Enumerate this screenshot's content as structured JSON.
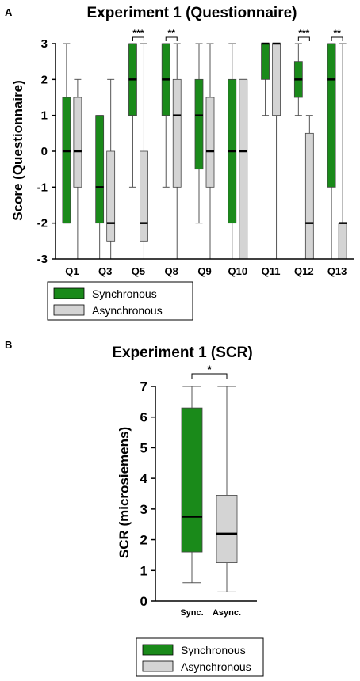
{
  "chart_data": [
    {
      "panel": "A",
      "type": "boxplot",
      "title": "Experiment 1 (Questionnaire)",
      "ylabel": "Score (Questionnaire)",
      "xlabel": "",
      "ylim": [
        -3,
        3
      ],
      "yticks": [
        "3",
        "2",
        "1",
        "0",
        "-1",
        "-2",
        "-3"
      ],
      "grid": false,
      "legend_position": "bottom-left",
      "categories": [
        "Q1",
        "Q3",
        "Q5",
        "Q8",
        "Q9",
        "Q10",
        "Q11",
        "Q12",
        "Q13"
      ],
      "significance": [
        "",
        "",
        "***",
        "**",
        "",
        "",
        "",
        "***",
        "**"
      ],
      "series": [
        {
          "name": "Synchronous",
          "color": "#1a8a1a",
          "boxes": [
            {
              "min": -2,
              "q1": -2,
              "median": 0,
              "q3": 1.5,
              "max": 3
            },
            {
              "min": -3,
              "q1": -2,
              "median": -1,
              "q3": 1,
              "max": 1
            },
            {
              "min": -1,
              "q1": 1,
              "median": 2,
              "q3": 3,
              "max": 3
            },
            {
              "min": -1,
              "q1": 1,
              "median": 2,
              "q3": 3,
              "max": 3
            },
            {
              "min": -2,
              "q1": -0.5,
              "median": 1,
              "q3": 2,
              "max": 3
            },
            {
              "min": -3,
              "q1": -2,
              "median": 0,
              "q3": 2,
              "max": 3
            },
            {
              "min": 1,
              "q1": 2,
              "median": 3,
              "q3": 3,
              "max": 3
            },
            {
              "min": 1,
              "q1": 1.5,
              "median": 2,
              "q3": 2.5,
              "max": 3
            },
            {
              "min": -3,
              "q1": -1,
              "median": 2,
              "q3": 3,
              "max": 3
            }
          ]
        },
        {
          "name": "Asynchronous",
          "color": "#d4d4d4",
          "boxes": [
            {
              "min": -3,
              "q1": -1,
              "median": 0,
              "q3": 1.5,
              "max": 2
            },
            {
              "min": -3,
              "q1": -2.5,
              "median": -2,
              "q3": 0,
              "max": 2
            },
            {
              "min": -3,
              "q1": -2.5,
              "median": -2,
              "q3": 0,
              "max": 3
            },
            {
              "min": -3,
              "q1": -1,
              "median": 1,
              "q3": 2,
              "max": 3
            },
            {
              "min": -3,
              "q1": -1,
              "median": 0,
              "q3": 1.5,
              "max": 3
            },
            {
              "min": -3,
              "q1": -3,
              "median": 0,
              "q3": 2,
              "max": 2
            },
            {
              "min": -3,
              "q1": 1,
              "median": 3,
              "q3": 3,
              "max": 3
            },
            {
              "min": -3,
              "q1": -3,
              "median": -2,
              "q3": 0.5,
              "max": 1
            },
            {
              "min": -3,
              "q1": -3,
              "median": -2,
              "q3": -2,
              "max": 3
            }
          ]
        }
      ]
    },
    {
      "panel": "B",
      "type": "boxplot",
      "title": "Experiment 1 (SCR)",
      "ylabel": "SCR (microsiemens)",
      "xlabel": "",
      "ylim": [
        0,
        7
      ],
      "yticks": [
        "7",
        "6",
        "5",
        "4",
        "3",
        "2",
        "1",
        "0"
      ],
      "grid": false,
      "legend_position": "bottom-center",
      "categories": [
        "Sync.",
        "Async."
      ],
      "significance": "*",
      "series": [
        {
          "name": "Synchronous",
          "color": "#1a8a1a",
          "box": {
            "min": 0.6,
            "q1": 1.6,
            "median": 2.75,
            "q3": 6.3,
            "max": 7
          }
        },
        {
          "name": "Asynchronous",
          "color": "#d4d4d4",
          "box": {
            "min": 0.3,
            "q1": 1.25,
            "median": 2.2,
            "q3": 3.45,
            "max": 7
          }
        }
      ]
    }
  ]
}
